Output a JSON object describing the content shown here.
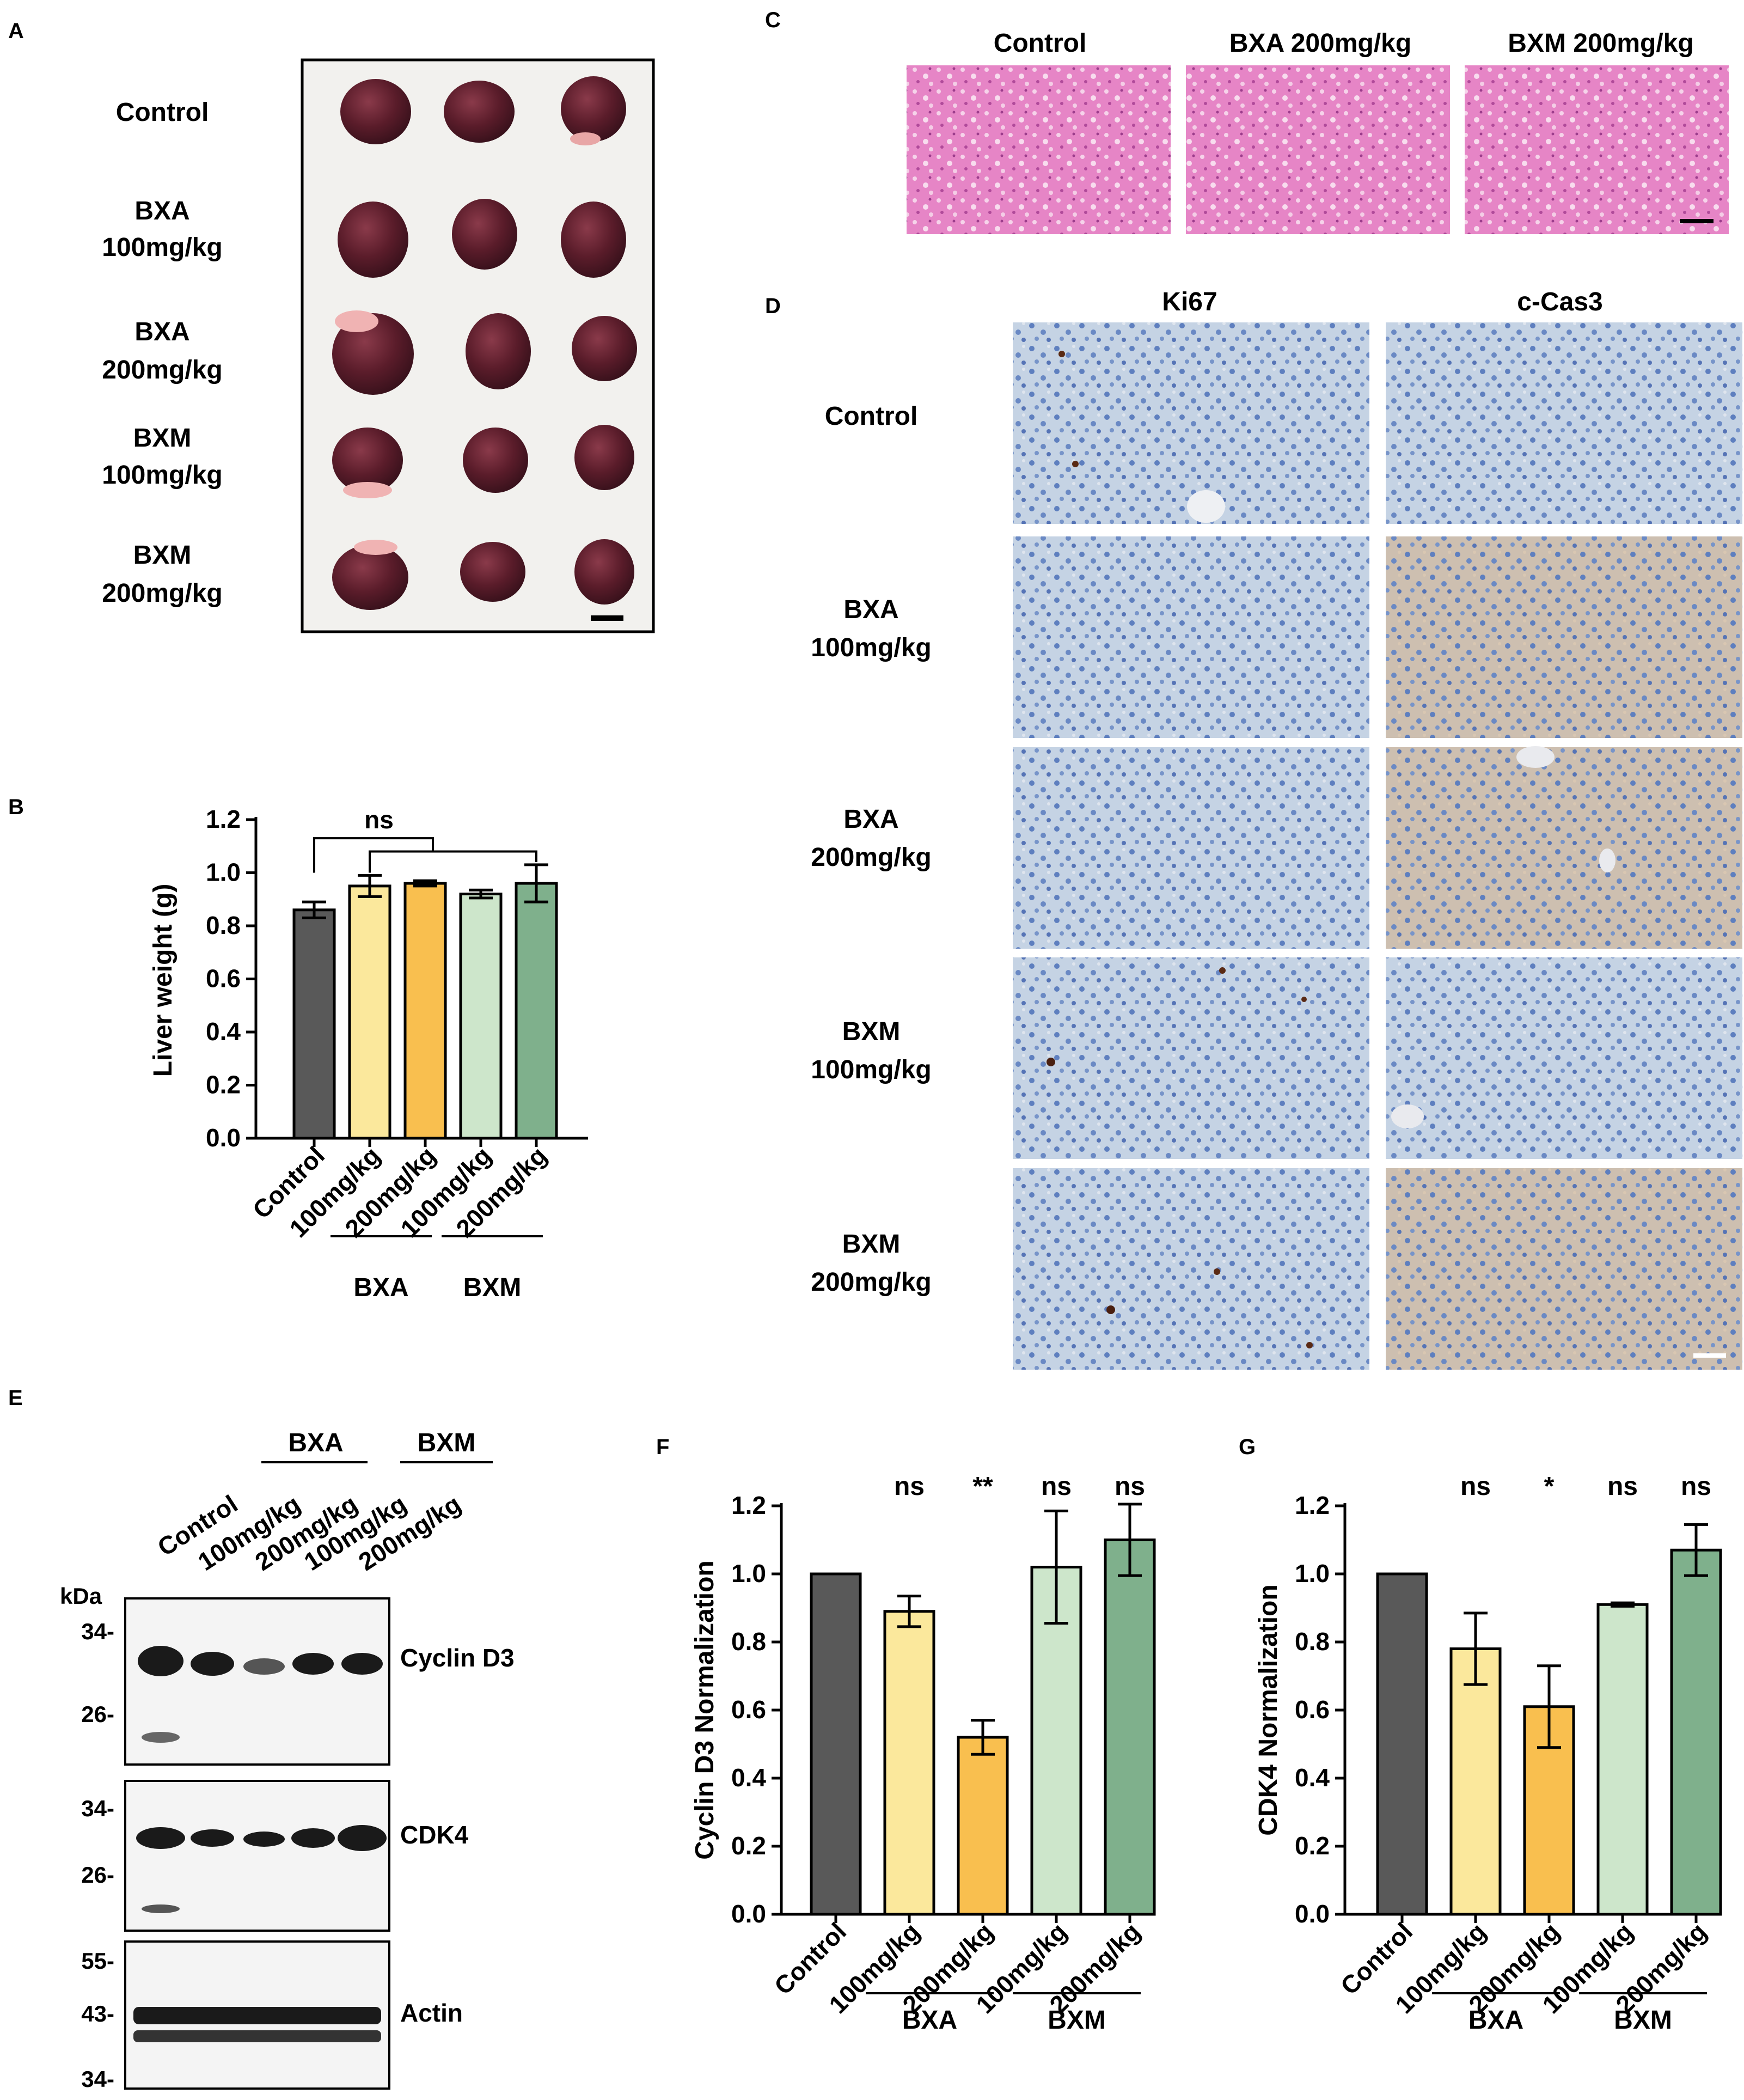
{
  "colors": {
    "control": "#595959",
    "bxa_100": "#fbe89c",
    "bxa_200": "#f9bf4f",
    "bxm_100": "#cde6cb",
    "bxm_200": "#7fb08c",
    "he_stain": "#e27ac0",
    "ihc_stain": "#bcd0e6",
    "liver": "#5a1c2a",
    "tray": "#f2f1ee"
  },
  "panel_letters": {
    "a": "A",
    "b": "B",
    "c": "C",
    "d": "D",
    "e": "E",
    "f": "F",
    "g": "G"
  },
  "panel_a": {
    "rows": [
      {
        "line1": "Control",
        "line2": ""
      },
      {
        "line1": "BXA",
        "line2": "100mg/kg"
      },
      {
        "line1": "BXA",
        "line2": "200mg/kg"
      },
      {
        "line1": "BXM",
        "line2": "100mg/kg"
      },
      {
        "line1": "BXM",
        "line2": "200mg/kg"
      }
    ]
  },
  "panel_c": {
    "columns": [
      "Control",
      "BXA 200mg/kg",
      "BXM 200mg/kg"
    ]
  },
  "panel_d": {
    "columns": [
      "Ki67",
      "c-Cas3"
    ],
    "rows": [
      {
        "line1": "Control",
        "line2": ""
      },
      {
        "line1": "BXA",
        "line2": "100mg/kg"
      },
      {
        "line1": "BXA",
        "line2": "200mg/kg"
      },
      {
        "line1": "BXM",
        "line2": "100mg/kg"
      },
      {
        "line1": "BXM",
        "line2": "200mg/kg"
      }
    ]
  },
  "panel_e": {
    "groups": [
      "BXA",
      "BXM"
    ],
    "lanes": [
      "Control",
      "100mg/kg",
      "200mg/kg",
      "100mg/kg",
      "200mg/kg"
    ],
    "kda_label": "kDa",
    "blots": [
      {
        "protein": "Cyclin D3",
        "markers": [
          "34-",
          "26-"
        ]
      },
      {
        "protein": "CDK4",
        "markers": [
          "34-",
          "26-"
        ]
      },
      {
        "protein": "Actin",
        "markers": [
          "55-",
          "43-",
          "34-"
        ]
      }
    ]
  },
  "chart_data": [
    {
      "panel": "B",
      "type": "bar",
      "categories": [
        "Control",
        "100mg/kg",
        "200mg/kg",
        "100mg/kg",
        "200mg/kg"
      ],
      "groups": [
        {
          "label": "BXA",
          "categories": [
            1,
            2
          ]
        },
        {
          "label": "BXM",
          "categories": [
            3,
            4
          ]
        }
      ],
      "values": [
        0.86,
        0.95,
        0.96,
        0.92,
        0.96
      ],
      "errors": [
        0.03,
        0.04,
        0.01,
        0.015,
        0.07
      ],
      "ylabel": "Liver weight (g)",
      "ylim": [
        0,
        1.2
      ],
      "yticks": [
        "0.0",
        "0.2",
        "0.4",
        "0.6",
        "0.8",
        "1.0",
        "1.2"
      ],
      "significance_bracket": "ns",
      "bar_colors": [
        "#595959",
        "#fbe89c",
        "#f9bf4f",
        "#cde6cb",
        "#7fb08c"
      ]
    },
    {
      "panel": "F",
      "type": "bar",
      "categories": [
        "Control",
        "100mg/kg",
        "200mg/kg",
        "100mg/kg",
        "200mg/kg"
      ],
      "groups": [
        {
          "label": "BXA",
          "categories": [
            1,
            2
          ]
        },
        {
          "label": "BXM",
          "categories": [
            3,
            4
          ]
        }
      ],
      "values": [
        1.0,
        0.89,
        0.52,
        1.02,
        1.1
      ],
      "errors": [
        0,
        0.045,
        0.05,
        0.165,
        0.105
      ],
      "significance": [
        "",
        "ns",
        "**",
        "ns",
        "ns"
      ],
      "ylabel": "Cyclin D3 Normalization",
      "ylim": [
        0,
        1.2
      ],
      "yticks": [
        "0.0",
        "0.2",
        "0.4",
        "0.6",
        "0.8",
        "1.0",
        "1.2"
      ],
      "bar_colors": [
        "#595959",
        "#fbe89c",
        "#f9bf4f",
        "#cde6cb",
        "#7fb08c"
      ]
    },
    {
      "panel": "G",
      "type": "bar",
      "categories": [
        "Control",
        "100mg/kg",
        "200mg/kg",
        "100mg/kg",
        "200mg/kg"
      ],
      "groups": [
        {
          "label": "BXA",
          "categories": [
            1,
            2
          ]
        },
        {
          "label": "BXM",
          "categories": [
            3,
            4
          ]
        }
      ],
      "values": [
        1.0,
        0.78,
        0.61,
        0.91,
        1.07
      ],
      "errors": [
        0,
        0.105,
        0.12,
        0.005,
        0.075
      ],
      "significance": [
        "",
        "ns",
        "*",
        "ns",
        "ns"
      ],
      "ylabel": "CDK4 Normalization",
      "ylim": [
        0,
        1.2
      ],
      "yticks": [
        "0.0",
        "0.2",
        "0.4",
        "0.6",
        "0.8",
        "1.0",
        "1.2"
      ],
      "bar_colors": [
        "#595959",
        "#fbe89c",
        "#f9bf4f",
        "#cde6cb",
        "#7fb08c"
      ]
    }
  ]
}
